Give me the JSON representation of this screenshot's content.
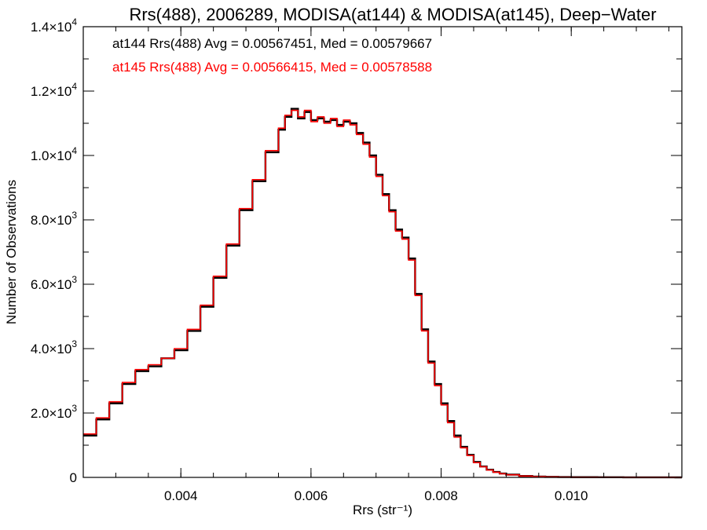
{
  "chart_data": {
    "type": "line",
    "title": "Rrs(488), 2006289, MODISA(at144) & MODISA(at145), Deep−Water",
    "xlabel": "Rrs (str⁻¹)",
    "ylabel": "Number of Observations",
    "xlim": [
      0.0025,
      0.0117
    ],
    "ylim": [
      0,
      14000
    ],
    "grid": false,
    "x_ticks": [
      {
        "value": 0.004,
        "label": "0.004"
      },
      {
        "value": 0.006,
        "label": "0.006"
      },
      {
        "value": 0.008,
        "label": "0.008"
      },
      {
        "value": 0.01,
        "label": "0.010"
      }
    ],
    "y_ticks": [
      {
        "value": 0,
        "label": "0",
        "exp": ""
      },
      {
        "value": 2000,
        "label": "2.0×10",
        "exp": "3"
      },
      {
        "value": 4000,
        "label": "4.0×10",
        "exp": "3"
      },
      {
        "value": 6000,
        "label": "6.0×10",
        "exp": "3"
      },
      {
        "value": 8000,
        "label": "8.0×10",
        "exp": "3"
      },
      {
        "value": 10000,
        "label": "1.0×10",
        "exp": "4"
      },
      {
        "value": 12000,
        "label": "1.2×10",
        "exp": "4"
      },
      {
        "value": 14000,
        "label": "1.4×10",
        "exp": "4"
      }
    ],
    "annotations": [
      {
        "text": "at144 Rrs(488) Avg = 0.00567451, Med = 0.00579667",
        "color": "#000000"
      },
      {
        "text": "at145 Rrs(488) Avg = 0.00566415, Med = 0.00578588",
        "color": "#ff0000"
      }
    ],
    "series": [
      {
        "color": "#000000",
        "style": "step",
        "x": [
          0.0025,
          0.0027,
          0.0029,
          0.0031,
          0.0033,
          0.0035,
          0.0037,
          0.0039,
          0.0041,
          0.0043,
          0.0045,
          0.0047,
          0.0049,
          0.0051,
          0.0053,
          0.0055,
          0.0056,
          0.0057,
          0.0058,
          0.0059,
          0.006,
          0.0061,
          0.0062,
          0.0063,
          0.0064,
          0.0065,
          0.0066,
          0.0067,
          0.0068,
          0.0069,
          0.007,
          0.0071,
          0.0072,
          0.0073,
          0.0074,
          0.0075,
          0.0076,
          0.0077,
          0.0078,
          0.0079,
          0.008,
          0.0081,
          0.0082,
          0.0083,
          0.0084,
          0.0085,
          0.0086,
          0.0087,
          0.0088,
          0.0089,
          0.009,
          0.0092,
          0.0094,
          0.0096,
          0.0098,
          0.01,
          0.0104,
          0.0108,
          0.0112,
          0.0116
        ],
        "y": [
          1300,
          1800,
          2300,
          2900,
          3300,
          3450,
          3700,
          3950,
          4550,
          5300,
          6200,
          7200,
          8300,
          9200,
          10100,
          10800,
          11200,
          11450,
          11150,
          11350,
          11100,
          11150,
          11050,
          11100,
          10950,
          11050,
          11000,
          10700,
          10400,
          10000,
          9400,
          8800,
          8300,
          7700,
          7450,
          6800,
          5700,
          4600,
          3600,
          2900,
          2300,
          1750,
          1300,
          950,
          700,
          480,
          340,
          240,
          170,
          120,
          85,
          45,
          25,
          15,
          10,
          6,
          4,
          2,
          1,
          0
        ]
      },
      {
        "color": "#ff0000",
        "style": "step",
        "x": [
          0.0025,
          0.0027,
          0.0029,
          0.0031,
          0.0033,
          0.0035,
          0.0037,
          0.0039,
          0.0041,
          0.0043,
          0.0045,
          0.0047,
          0.0049,
          0.0051,
          0.0053,
          0.0055,
          0.0056,
          0.0057,
          0.0058,
          0.0059,
          0.006,
          0.0061,
          0.0062,
          0.0063,
          0.0064,
          0.0065,
          0.0066,
          0.0067,
          0.0068,
          0.0069,
          0.007,
          0.0071,
          0.0072,
          0.0073,
          0.0074,
          0.0075,
          0.0076,
          0.0077,
          0.0078,
          0.0079,
          0.008,
          0.0081,
          0.0082,
          0.0083,
          0.0084,
          0.0085,
          0.0086,
          0.0087,
          0.0088,
          0.0089,
          0.009,
          0.0092,
          0.0094,
          0.0096,
          0.0098,
          0.01,
          0.0104,
          0.0108,
          0.0112,
          0.0116
        ],
        "y": [
          1350,
          1850,
          2350,
          2950,
          3350,
          3500,
          3700,
          4000,
          4600,
          5350,
          6250,
          7250,
          8350,
          9250,
          10150,
          10850,
          11250,
          11400,
          11200,
          11400,
          11050,
          11200,
          11000,
          11150,
          10900,
          11100,
          10950,
          10650,
          10350,
          9950,
          9350,
          8750,
          8250,
          7650,
          7400,
          6750,
          5650,
          4550,
          3550,
          2850,
          2250,
          1700,
          1250,
          920,
          680,
          460,
          330,
          230,
          160,
          115,
          80,
          42,
          22,
          13,
          9,
          5,
          3,
          2,
          1,
          0
        ]
      }
    ]
  }
}
